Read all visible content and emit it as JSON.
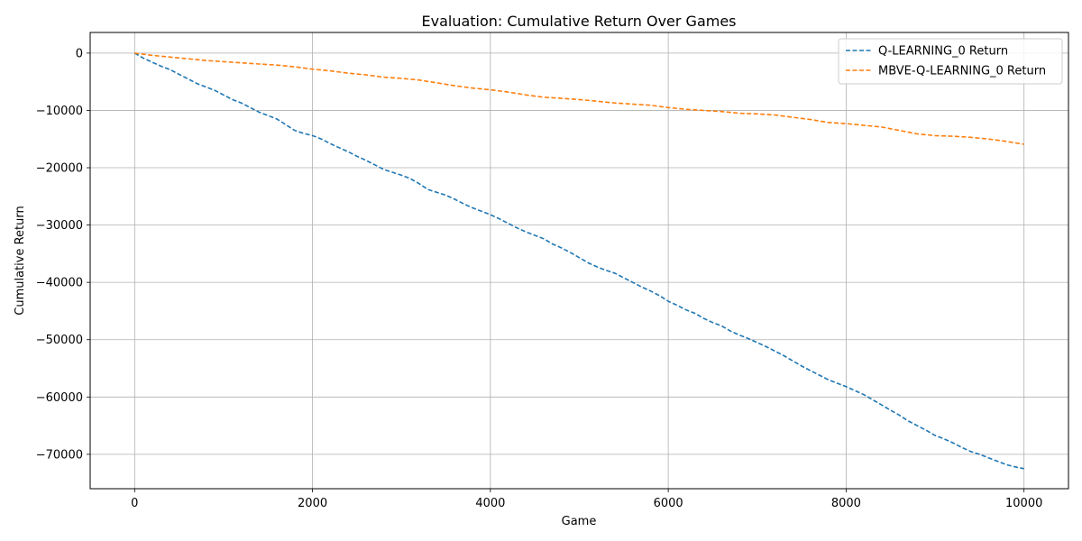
{
  "chart_data": {
    "type": "line",
    "title": "Evaluation: Cumulative Return Over Games",
    "xlabel": "Game",
    "ylabel": "Cumulative Return",
    "xlim": [
      -500,
      10500
    ],
    "ylim": [
      -76000,
      3600
    ],
    "xticks": [
      0,
      2000,
      4000,
      6000,
      8000,
      10000
    ],
    "yticks": [
      0,
      -10000,
      -20000,
      -30000,
      -40000,
      -50000,
      -60000,
      -70000
    ],
    "grid": true,
    "legend_position": "top-right",
    "series": [
      {
        "name": "Q-LEARNING_0 Return",
        "color": "#1f77b4",
        "linestyle": "dashed",
        "x": [
          0,
          100,
          200,
          300,
          400,
          500,
          600,
          700,
          800,
          900,
          1000,
          1100,
          1200,
          1300,
          1400,
          1500,
          1600,
          1700,
          1800,
          1900,
          2000,
          2100,
          2200,
          2300,
          2400,
          2500,
          2600,
          2700,
          2800,
          2900,
          3000,
          3100,
          3200,
          3300,
          3400,
          3500,
          3600,
          3700,
          3800,
          3900,
          4000,
          4100,
          4200,
          4300,
          4400,
          4500,
          4600,
          4700,
          4800,
          4900,
          5000,
          5100,
          5200,
          5300,
          5400,
          5500,
          5600,
          5700,
          5800,
          5900,
          6000,
          6100,
          6200,
          6300,
          6400,
          6500,
          6600,
          6700,
          6800,
          6900,
          7000,
          7100,
          7200,
          7300,
          7400,
          7500,
          7600,
          7700,
          7800,
          7900,
          8000,
          8100,
          8200,
          8300,
          8400,
          8500,
          8600,
          8700,
          8800,
          8900,
          9000,
          9100,
          9200,
          9300,
          9400,
          9500,
          9600,
          9700,
          9800,
          9900,
          10000
        ],
        "y": [
          0,
          -900,
          -1600,
          -2300,
          -2900,
          -3700,
          -4500,
          -5300,
          -5900,
          -6500,
          -7300,
          -8100,
          -8700,
          -9500,
          -10300,
          -10900,
          -11500,
          -12500,
          -13500,
          -14000,
          -14400,
          -15000,
          -15800,
          -16500,
          -17200,
          -18000,
          -18700,
          -19500,
          -20300,
          -20800,
          -21300,
          -21900,
          -22800,
          -23800,
          -24300,
          -24800,
          -25500,
          -26300,
          -27000,
          -27600,
          -28200,
          -28900,
          -29700,
          -30500,
          -31200,
          -31800,
          -32400,
          -33300,
          -34000,
          -34800,
          -35700,
          -36600,
          -37300,
          -37900,
          -38400,
          -39200,
          -40000,
          -40800,
          -41500,
          -42300,
          -43300,
          -44000,
          -44800,
          -45400,
          -46300,
          -47000,
          -47600,
          -48500,
          -49200,
          -49800,
          -50500,
          -51200,
          -52000,
          -52800,
          -53700,
          -54600,
          -55400,
          -56200,
          -57000,
          -57600,
          -58200,
          -58900,
          -59600,
          -60500,
          -61400,
          -62300,
          -63200,
          -64200,
          -65000,
          -65800,
          -66700,
          -67300,
          -68000,
          -68800,
          -69500,
          -70000,
          -70600,
          -71200,
          -71800,
          -72200,
          -72500
        ]
      },
      {
        "name": "MBVE-Q-LEARNING_0 Return",
        "color": "#ff7f0e",
        "linestyle": "dashed",
        "x": [
          0,
          200,
          400,
          600,
          800,
          1000,
          1200,
          1400,
          1600,
          1800,
          2000,
          2200,
          2400,
          2600,
          2800,
          3000,
          3200,
          3400,
          3600,
          3800,
          4000,
          4200,
          4400,
          4600,
          4800,
          5000,
          5200,
          5400,
          5600,
          5800,
          6000,
          6200,
          6400,
          6600,
          6800,
          7000,
          7200,
          7400,
          7600,
          7800,
          8000,
          8200,
          8400,
          8600,
          8800,
          9000,
          9200,
          9400,
          9600,
          9800,
          10000
        ],
        "y": [
          0,
          -400,
          -700,
          -1000,
          -1300,
          -1500,
          -1700,
          -1900,
          -2100,
          -2400,
          -2800,
          -3100,
          -3500,
          -3800,
          -4200,
          -4400,
          -4700,
          -5200,
          -5700,
          -6100,
          -6400,
          -6800,
          -7300,
          -7700,
          -7900,
          -8100,
          -8400,
          -8700,
          -8900,
          -9100,
          -9500,
          -9800,
          -10000,
          -10200,
          -10500,
          -10600,
          -10800,
          -11200,
          -11600,
          -12100,
          -12300,
          -12600,
          -12900,
          -13500,
          -14100,
          -14400,
          -14500,
          -14700,
          -15000,
          -15400,
          -15900
        ]
      }
    ]
  }
}
